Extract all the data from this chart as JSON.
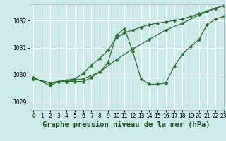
{
  "background_color": "#cdeaea",
  "grid_color": "#ffffff",
  "line_color": "#2d6e2d",
  "title": "Graphe pression niveau de la mer (hPa)",
  "xlim": [
    -0.5,
    23
  ],
  "ylim": [
    1028.7,
    1032.6
  ],
  "yticks": [
    1029,
    1030,
    1031,
    1032
  ],
  "xticks": [
    0,
    1,
    2,
    3,
    4,
    5,
    6,
    7,
    8,
    9,
    10,
    11,
    12,
    13,
    14,
    15,
    16,
    17,
    18,
    19,
    20,
    21,
    22,
    23
  ],
  "line1_x": [
    0,
    2,
    3,
    4,
    5,
    6,
    7,
    8,
    9,
    10,
    11,
    12,
    13,
    14,
    15,
    16,
    17,
    18,
    19,
    20,
    21,
    22,
    23
  ],
  "line1_y": [
    1029.9,
    1029.6,
    1029.75,
    1029.75,
    1029.75,
    1029.75,
    1029.9,
    1030.1,
    1030.45,
    1031.45,
    1031.7,
    1030.85,
    1029.85,
    1029.65,
    1029.65,
    1029.7,
    1030.3,
    1030.75,
    1031.05,
    1031.3,
    1031.85,
    1032.05,
    1032.15
  ],
  "line2_x": [
    0,
    2,
    3,
    4,
    5,
    6,
    7,
    8,
    9,
    10,
    11,
    12,
    13,
    14,
    15,
    16,
    17,
    18,
    19,
    20,
    21,
    22,
    23
  ],
  "line2_y": [
    1029.85,
    1029.7,
    1029.75,
    1029.8,
    1029.85,
    1030.05,
    1030.35,
    1030.6,
    1030.9,
    1031.35,
    1031.55,
    1031.65,
    1031.75,
    1031.85,
    1031.9,
    1031.95,
    1032.0,
    1032.05,
    1032.15,
    1032.25,
    1032.35,
    1032.45,
    1032.55
  ],
  "line3_x": [
    0,
    2,
    4,
    6,
    8,
    10,
    12,
    14,
    16,
    18,
    20,
    22,
    23
  ],
  "line3_y": [
    1029.85,
    1029.7,
    1029.75,
    1029.85,
    1030.1,
    1030.55,
    1030.95,
    1031.3,
    1031.65,
    1031.9,
    1032.2,
    1032.45,
    1032.55
  ],
  "marker_size": 2.5,
  "linewidth": 0.9,
  "title_fontsize": 7.5,
  "tick_fontsize": 5.5
}
